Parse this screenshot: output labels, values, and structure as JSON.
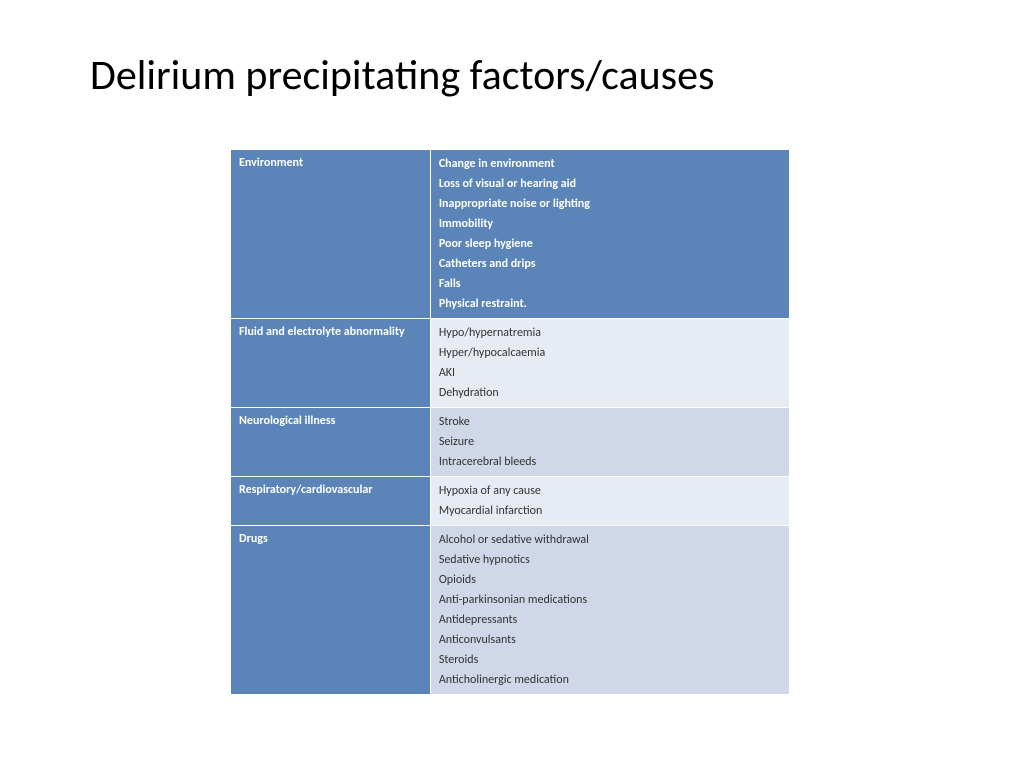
{
  "title": "Delirium precipitating factors/causes",
  "colors": {
    "primary": "#5b85b9",
    "light1": "#e7ebf4",
    "light2": "#cfd7e8",
    "text_dark": "#333333",
    "text_light": "#ffffff"
  },
  "rows": [
    {
      "category": "Environment",
      "style": "header",
      "items": [
        "Change in environment",
        "Loss of visual or hearing aid",
        "Inappropriate noise or lighting",
        "Immobility",
        "Poor sleep hygiene",
        "Catheters and drips",
        "Falls",
        "Physical restraint."
      ]
    },
    {
      "category": "Fluid and electrolyte abnormality",
      "style": "alt1",
      "items": [
        "Hypo/hypernatremia",
        "Hyper/hypocalcaemia",
        "AKI",
        "Dehydration"
      ]
    },
    {
      "category": "Neurological illness",
      "style": "alt2",
      "items": [
        "Stroke",
        "Seizure",
        "Intracerebral bleeds"
      ]
    },
    {
      "category": "Respiratory/cardiovascular",
      "style": "alt1",
      "items": [
        "Hypoxia of any cause",
        "Myocardial infarction"
      ]
    },
    {
      "category": "Drugs",
      "style": "alt2",
      "items": [
        "Alcohol or sedative withdrawal",
        "Sedative hypnotics",
        "Opioids",
        "Anti-parkinsonian medications",
        "Antidepressants",
        "Anticonvulsants",
        "Steroids",
        "Anticholinergic medication"
      ]
    }
  ]
}
